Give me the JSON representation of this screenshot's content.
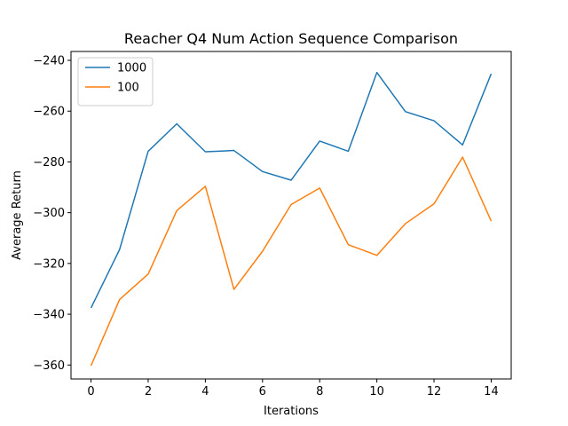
{
  "chart_data": {
    "type": "line",
    "title": "Reacher Q4 Num Action Sequence Comparison",
    "xlabel": "Iterations",
    "ylabel": "Average Return",
    "xlim": [
      -0.7,
      14.7
    ],
    "ylim": [
      -365.5,
      -236.5
    ],
    "xticks": [
      0,
      2,
      4,
      6,
      8,
      10,
      12,
      14
    ],
    "yticks": [
      -360,
      -340,
      -320,
      -300,
      -280,
      -260,
      -240
    ],
    "grid": false,
    "legend_position": "top-left",
    "x": [
      0,
      1,
      2,
      3,
      4,
      5,
      6,
      7,
      8,
      9,
      10,
      11,
      12,
      13,
      14
    ],
    "series": [
      {
        "name": "1000",
        "color": "#1f77b4",
        "values": [
          -337.5,
          -314.5,
          -275.8,
          -265,
          -276,
          -275.5,
          -283.8,
          -287.2,
          -271.8,
          -275.8,
          -244.8,
          -260.2,
          -263.8,
          -273.3,
          -245.3
        ]
      },
      {
        "name": "100",
        "color": "#ff7f0e",
        "values": [
          -360.3,
          -334.2,
          -324.2,
          -299.2,
          -289.6,
          -330.2,
          -315.2,
          -296.8,
          -290.3,
          -312.6,
          -316.8,
          -304.3,
          -296.5,
          -278.1,
          -303.3
        ]
      }
    ]
  }
}
